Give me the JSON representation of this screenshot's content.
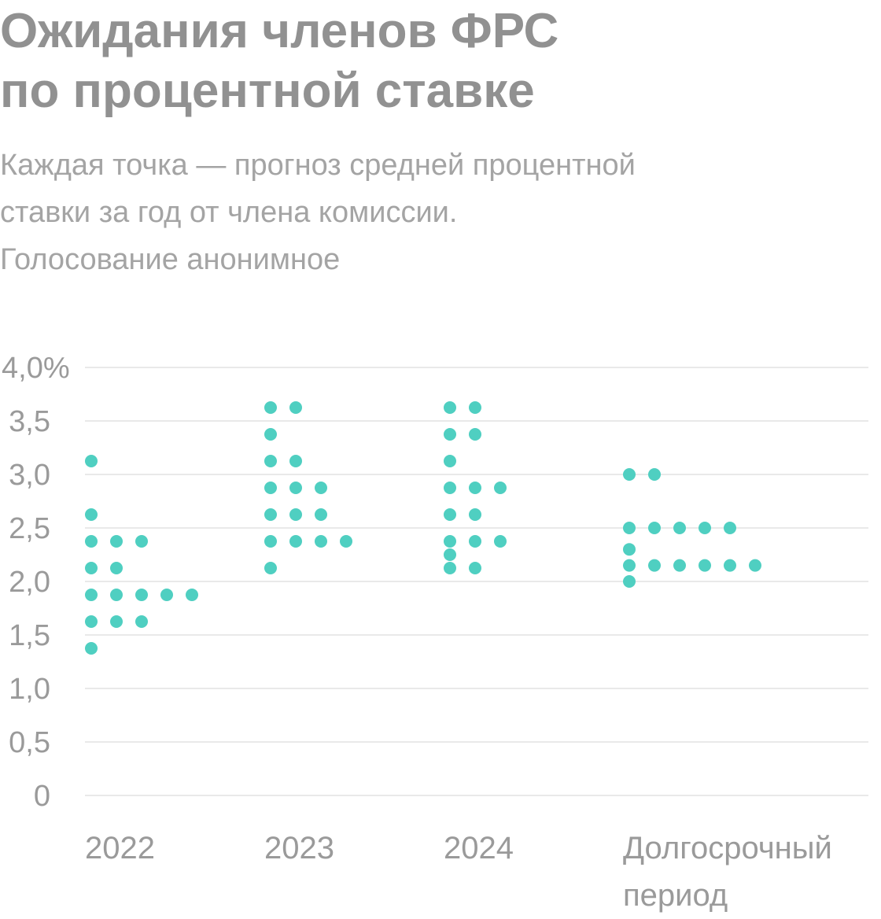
{
  "title": {
    "line1": "Ожидания членов ФРС",
    "line2": "по процентной ставке"
  },
  "subtitle": {
    "line1": "Каждая точка — прогноз средней процентной",
    "line2": "ставки за год от члена комиссии.",
    "line3": "Голосование анонимное"
  },
  "colors": {
    "dot": "#4fcfc1",
    "text": "#9a9a9a",
    "title": "#919191",
    "grid": "#e2e2e2"
  },
  "chart_data": {
    "type": "scatter",
    "subtype": "dot-plot",
    "title": "Ожидания членов ФРС по процентной ставке",
    "subtitle": "Каждая точка — прогноз средней процентной ставки за год от члена комиссии. Голосование анонимное",
    "ylim": [
      0,
      4.0
    ],
    "yticks": [
      {
        "value": 4.0,
        "label": "4,0%"
      },
      {
        "value": 3.5,
        "label": "3,5"
      },
      {
        "value": 3.0,
        "label": "3,0"
      },
      {
        "value": 2.5,
        "label": "2,5"
      },
      {
        "value": 2.0,
        "label": "2,0"
      },
      {
        "value": 1.5,
        "label": "1,5"
      },
      {
        "value": 1.0,
        "label": "1,0"
      },
      {
        "value": 0.5,
        "label": "0,5"
      },
      {
        "value": 0,
        "label": "0"
      }
    ],
    "grid": true,
    "categories": [
      {
        "label": [
          "2022"
        ],
        "rows": [
          {
            "value": 3.125,
            "count": 1
          },
          {
            "value": 2.625,
            "count": 1
          },
          {
            "value": 2.375,
            "count": 3
          },
          {
            "value": 2.125,
            "count": 2
          },
          {
            "value": 1.875,
            "count": 5
          },
          {
            "value": 1.625,
            "count": 3
          },
          {
            "value": 1.375,
            "count": 1
          }
        ]
      },
      {
        "label": [
          "2023"
        ],
        "rows": [
          {
            "value": 3.625,
            "count": 2
          },
          {
            "value": 3.375,
            "count": 1
          },
          {
            "value": 3.125,
            "count": 2
          },
          {
            "value": 2.875,
            "count": 3
          },
          {
            "value": 2.625,
            "count": 3
          },
          {
            "value": 2.375,
            "count": 4
          },
          {
            "value": 2.125,
            "count": 1
          }
        ]
      },
      {
        "label": [
          "2024"
        ],
        "rows": [
          {
            "value": 3.625,
            "count": 2
          },
          {
            "value": 3.375,
            "count": 2
          },
          {
            "value": 3.125,
            "count": 1
          },
          {
            "value": 2.875,
            "count": 3
          },
          {
            "value": 2.625,
            "count": 2
          },
          {
            "value": 2.375,
            "count": 3
          },
          {
            "value": 2.25,
            "count": 1
          },
          {
            "value": 2.125,
            "count": 2
          }
        ]
      },
      {
        "label": [
          "Долгосрочный",
          "период"
        ],
        "rows": [
          {
            "value": 3.0,
            "count": 2
          },
          {
            "value": 2.5,
            "count": 5
          },
          {
            "value": 2.3,
            "count": 1
          },
          {
            "value": 2.15,
            "count": 6
          },
          {
            "value": 2.0,
            "count": 1
          }
        ]
      }
    ]
  }
}
